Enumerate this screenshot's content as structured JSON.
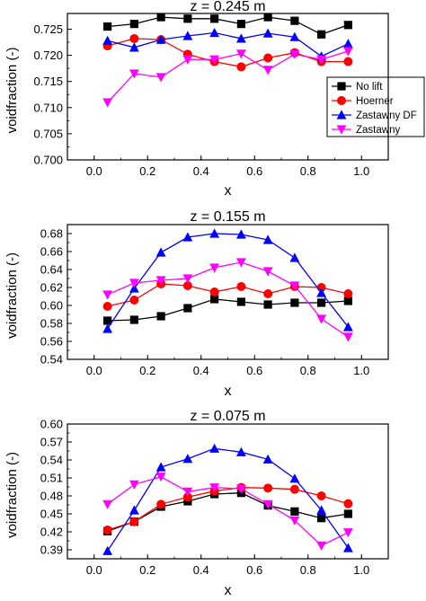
{
  "chart_data": [
    {
      "type": "line",
      "title": "z = 0.245 m",
      "xlabel": "x",
      "ylabel": "voidfraction (-)",
      "xlim": [
        -0.1,
        1.1
      ],
      "ylim": [
        0.7,
        0.728
      ],
      "xticks": [
        0.0,
        0.2,
        0.4,
        0.6,
        0.8,
        1.0
      ],
      "xtick_labels": [
        "0.0",
        "0.2",
        "0.4",
        "0.6",
        "0.8",
        "1.0"
      ],
      "yticks": [
        0.7,
        0.705,
        0.71,
        0.715,
        0.72,
        0.725
      ],
      "ytick_labels": [
        "0.700",
        "0.705",
        "0.710",
        "0.715",
        "0.720",
        "0.725"
      ],
      "legend": "right",
      "x": [
        0.05,
        0.15,
        0.25,
        0.35,
        0.45,
        0.55,
        0.65,
        0.75,
        0.85,
        0.95
      ],
      "series": [
        {
          "name": "No lift",
          "color": "#000000",
          "marker": "square",
          "values": [
            0.7255,
            0.726,
            0.7273,
            0.727,
            0.727,
            0.726,
            0.7273,
            0.7266,
            0.724,
            0.7258
          ]
        },
        {
          "name": "Hoerner",
          "color": "#ff0000",
          "marker": "circle",
          "values": [
            0.7218,
            0.7232,
            0.723,
            0.7202,
            0.7188,
            0.7178,
            0.7195,
            0.7205,
            0.7188,
            0.7188
          ]
        },
        {
          "name": "Zastawny DF",
          "color": "#0000ff",
          "marker": "triangle-up",
          "values": [
            0.7228,
            0.7215,
            0.723,
            0.7237,
            0.7243,
            0.7232,
            0.7242,
            0.7235,
            0.7198,
            0.7222
          ]
        },
        {
          "name": "Zastawny",
          "color": "#ff00ff",
          "marker": "triangle-down",
          "values": [
            0.711,
            0.7165,
            0.7158,
            0.7192,
            0.7192,
            0.7203,
            0.7172,
            0.7202,
            0.7192,
            0.7208
          ]
        }
      ]
    },
    {
      "type": "line",
      "title": "z = 0.155 m",
      "xlabel": "x",
      "ylabel": "voidfraction (-)",
      "xlim": [
        -0.1,
        1.1
      ],
      "ylim": [
        0.54,
        0.69
      ],
      "xticks": [
        0.0,
        0.2,
        0.4,
        0.6,
        0.8,
        1.0
      ],
      "xtick_labels": [
        "0.0",
        "0.2",
        "0.4",
        "0.6",
        "0.8",
        "1.0"
      ],
      "yticks": [
        0.54,
        0.56,
        0.58,
        0.6,
        0.62,
        0.64,
        0.66,
        0.68
      ],
      "ytick_labels": [
        "0.54",
        "0.56",
        "0.58",
        "0.60",
        "0.62",
        "0.64",
        "0.66",
        "0.68"
      ],
      "x": [
        0.05,
        0.15,
        0.25,
        0.35,
        0.45,
        0.55,
        0.65,
        0.75,
        0.85,
        0.95
      ],
      "series": [
        {
          "name": "No lift",
          "color": "#000000",
          "marker": "square",
          "values": [
            0.583,
            0.584,
            0.588,
            0.597,
            0.607,
            0.604,
            0.601,
            0.603,
            0.603,
            0.605
          ]
        },
        {
          "name": "Hoerner",
          "color": "#ff0000",
          "marker": "circle",
          "values": [
            0.599,
            0.606,
            0.624,
            0.622,
            0.615,
            0.621,
            0.613,
            0.621,
            0.62,
            0.613
          ]
        },
        {
          "name": "Zastawny DF",
          "color": "#0000ff",
          "marker": "triangle-up",
          "values": [
            0.574,
            0.619,
            0.659,
            0.676,
            0.68,
            0.679,
            0.673,
            0.653,
            0.614,
            0.576
          ]
        },
        {
          "name": "Zastawny",
          "color": "#ff00ff",
          "marker": "triangle-down",
          "values": [
            0.612,
            0.625,
            0.628,
            0.63,
            0.642,
            0.648,
            0.638,
            0.622,
            0.585,
            0.565
          ]
        }
      ]
    },
    {
      "type": "line",
      "title": "z = 0.075 m",
      "xlabel": "x",
      "ylabel": "voidfraction (-)",
      "xlim": [
        -0.1,
        1.1
      ],
      "ylim": [
        0.375,
        0.6
      ],
      "xticks": [
        0.0,
        0.2,
        0.4,
        0.6,
        0.8,
        1.0
      ],
      "xtick_labels": [
        "0.0",
        "0.2",
        "0.4",
        "0.6",
        "0.8",
        "1.0"
      ],
      "yticks": [
        0.39,
        0.42,
        0.45,
        0.48,
        0.51,
        0.54,
        0.57,
        0.6
      ],
      "ytick_labels": [
        "0.39",
        "0.42",
        "0.45",
        "0.48",
        "0.51",
        "0.54",
        "0.57",
        "0.60"
      ],
      "x": [
        0.05,
        0.15,
        0.25,
        0.35,
        0.45,
        0.55,
        0.65,
        0.75,
        0.85,
        0.95
      ],
      "series": [
        {
          "name": "No lift",
          "color": "#000000",
          "marker": "square",
          "values": [
            0.421,
            0.437,
            0.462,
            0.471,
            0.483,
            0.485,
            0.464,
            0.454,
            0.443,
            0.45
          ]
        },
        {
          "name": "Hoerner",
          "color": "#ff0000",
          "marker": "circle",
          "values": [
            0.423,
            0.437,
            0.466,
            0.478,
            0.488,
            0.494,
            0.493,
            0.491,
            0.48,
            0.467
          ]
        },
        {
          "name": "Zastawny DF",
          "color": "#0000ff",
          "marker": "triangle-up",
          "values": [
            0.388,
            0.456,
            0.528,
            0.542,
            0.559,
            0.553,
            0.541,
            0.509,
            0.456,
            0.393
          ]
        },
        {
          "name": "Zastawny",
          "color": "#ff00ff",
          "marker": "triangle-down",
          "values": [
            0.466,
            0.499,
            0.512,
            0.487,
            0.494,
            0.492,
            0.466,
            0.439,
            0.397,
            0.419
          ]
        }
      ]
    }
  ]
}
